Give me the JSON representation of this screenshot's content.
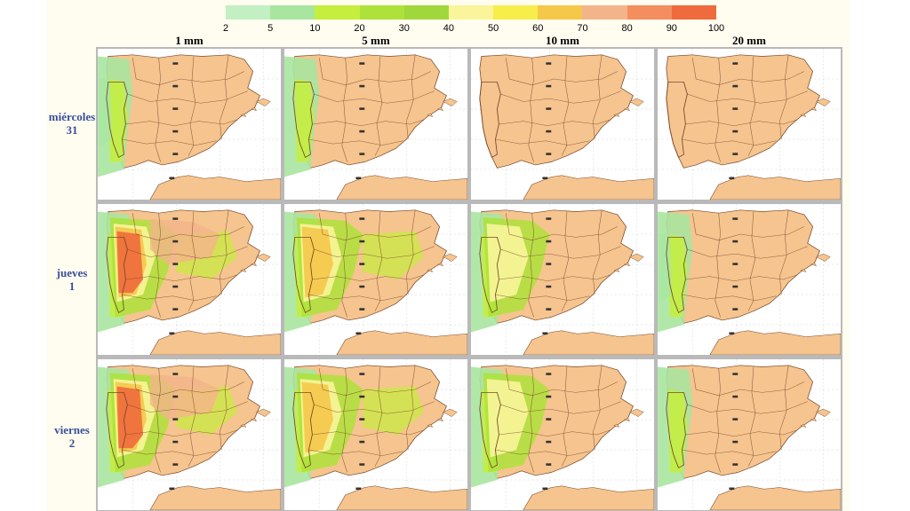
{
  "legend": {
    "ticks": [
      "2",
      "5",
      "10",
      "20",
      "30",
      "40",
      "50",
      "60",
      "70",
      "80",
      "90",
      "100"
    ],
    "colors": [
      "#c2f0c2",
      "#a8e6a0",
      "#c6ee3c",
      "#aee23a",
      "#a0d83c",
      "#faf59a",
      "#f7ee4a",
      "#f5c84a",
      "#f4b48a",
      "#f48e5e",
      "#ef6a3c"
    ]
  },
  "columns": [
    "1 mm",
    "5 mm",
    "10 mm",
    "20 mm"
  ],
  "rows": [
    {
      "day": "miércoles",
      "num": "31"
    },
    {
      "day": "jueves",
      "num": "1"
    },
    {
      "day": "viernes",
      "num": "2"
    }
  ],
  "map_colors": {
    "land": "#f5c48f",
    "sea": "#ffffff",
    "border": "#7a4a2a",
    "frame": "#b9b9b9"
  },
  "map_intensity": [
    [
      2,
      1,
      0,
      0
    ],
    [
      5,
      4,
      3,
      2
    ],
    [
      5,
      4,
      3,
      1
    ]
  ]
}
